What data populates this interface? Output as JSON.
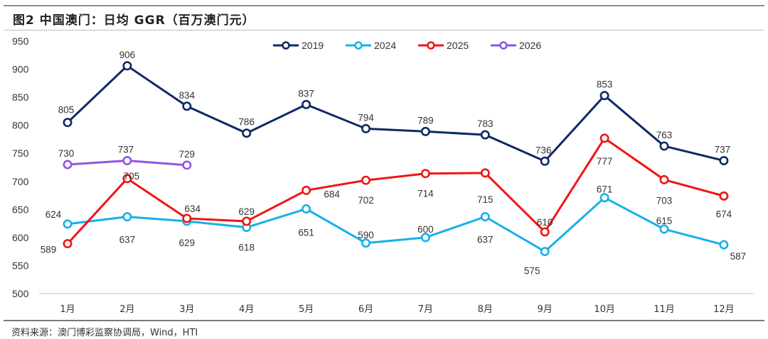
{
  "header": {
    "title": "图2  中国澳门：日均 GGR（百万澳门元）"
  },
  "footer": {
    "source": "资料来源：澳门博彩监察协调局，Wind，HTI"
  },
  "chart_data": {
    "type": "line",
    "title": "中国澳门：日均 GGR（百万澳门元）",
    "xlabel": "",
    "ylabel": "",
    "ylim": [
      500,
      950
    ],
    "yticks": [
      500,
      550,
      600,
      650,
      700,
      750,
      800,
      850,
      900,
      950
    ],
    "grid": false,
    "legend_position": "top-center",
    "categories": [
      "1月",
      "2月",
      "3月",
      "4月",
      "5月",
      "6月",
      "7月",
      "8月",
      "9月",
      "10月",
      "11月",
      "12月"
    ],
    "series": [
      {
        "name": "2019",
        "color": "#0d2a63",
        "values": [
          805,
          906,
          834,
          786,
          837,
          794,
          789,
          783,
          736,
          853,
          763,
          737
        ]
      },
      {
        "name": "2024",
        "color": "#16b0ea",
        "values": [
          624,
          637,
          629,
          618,
          651,
          590,
          600,
          637,
          575,
          671,
          615,
          587
        ]
      },
      {
        "name": "2025",
        "color": "#f01414",
        "values": [
          589,
          705,
          634,
          629,
          684,
          702,
          714,
          715,
          610,
          777,
          703,
          674
        ]
      },
      {
        "name": "2026",
        "color": "#8f55e0",
        "values": [
          730,
          737,
          729,
          null,
          null,
          null,
          null,
          null,
          null,
          null,
          null,
          null
        ]
      }
    ]
  }
}
